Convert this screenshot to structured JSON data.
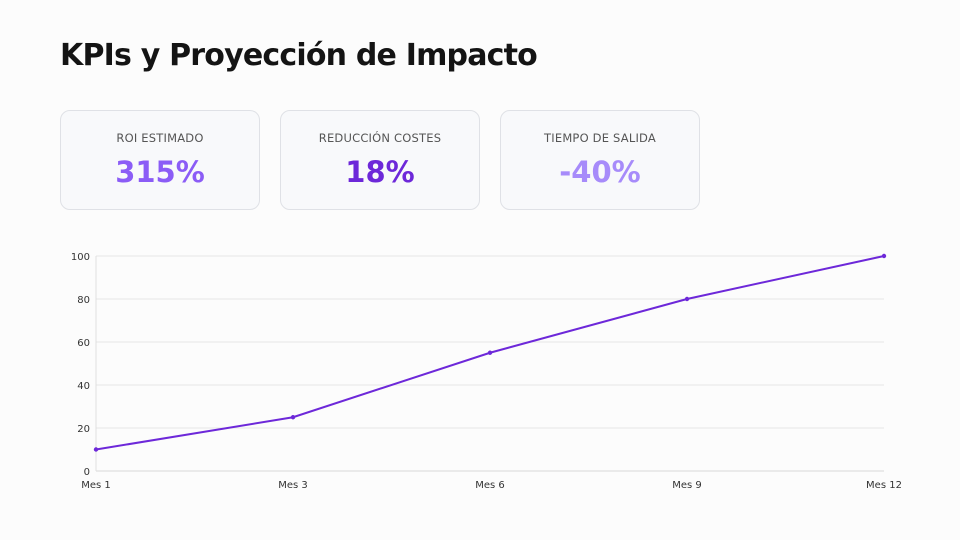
{
  "title": "KPIs y Proyección de Impacto",
  "kpis": [
    {
      "label": "ROI ESTIMADO",
      "value": "315%",
      "color": "#8b5cf6"
    },
    {
      "label": "REDUCCIÓN COSTES",
      "value": "18%",
      "color": "#6d28d9"
    },
    {
      "label": "TIEMPO DE SALIDA",
      "value": "-40%",
      "color": "#a78bfa"
    }
  ],
  "chart_data": {
    "type": "line",
    "categories": [
      "Mes 1",
      "Mes 3",
      "Mes 6",
      "Mes 9",
      "Mes 12"
    ],
    "values": [
      10,
      25,
      55,
      80,
      100
    ],
    "ylim": [
      0,
      100
    ],
    "yticks": [
      0,
      20,
      40,
      60,
      80,
      100
    ],
    "grid": true,
    "color": "#6d28d9"
  }
}
